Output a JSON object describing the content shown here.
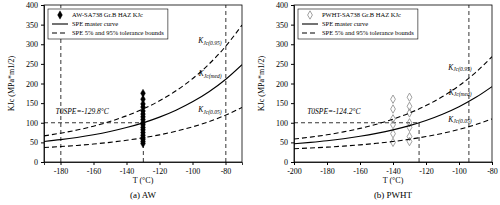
{
  "chart_data": [
    {
      "type": "scatter",
      "title": "(a) AW",
      "x_label": "T (°C)",
      "y_label": "KJc (MPa*m1/2)",
      "xlim": [
        -190,
        -70
      ],
      "xticks": [
        -180,
        -160,
        -140,
        -120,
        -100,
        -80
      ],
      "ylim": [
        0,
        400
      ],
      "yticks": [
        0,
        50,
        100,
        150,
        200,
        250,
        300,
        350,
        400
      ],
      "legend": "upper left",
      "series": [
        {
          "name": "AW-SA738 Gr.B HAZ KJc",
          "type": "scatter",
          "marker": "diamond",
          "color": "#000000",
          "x": [
            -130,
            -130,
            -130,
            -130,
            -130,
            -130,
            -130,
            -130,
            -130,
            -130,
            -130,
            -130,
            -130,
            -130,
            -130,
            -130,
            -130,
            -130
          ],
          "values": [
            175,
            160,
            148,
            140,
            130,
            122,
            115,
            108,
            100,
            95,
            88,
            82,
            75,
            68,
            62,
            58,
            52,
            47
          ]
        },
        {
          "name": "SPE master curve",
          "type": "line",
          "line_style": "solid",
          "color": "#000000",
          "label": "KJc(med)",
          "x": [
            -190,
            -180,
            -170,
            -160,
            -150,
            -140,
            -130,
            -120,
            -110,
            -100,
            -90,
            -80,
            -70
          ],
          "values": [
            52.3,
            57.0,
            62.6,
            69.4,
            77.7,
            87.7,
            99.7,
            114.3,
            132.0,
            153.3,
            179.1,
            210.3,
            248.0
          ]
        },
        {
          "name": "SPE 5% and 95% tolerance bounds",
          "type": "line",
          "line_style": "dashed",
          "color": "#000000",
          "label": "KJc(0.95)",
          "x": [
            -190,
            -180,
            -170,
            -160,
            -150,
            -140,
            -130,
            -120,
            -110,
            -100,
            -90,
            -80,
            -70
          ],
          "values": [
            66.6,
            73.4,
            81.4,
            91.2,
            103.2,
            117.6,
            134.9,
            156.0,
            181.5,
            212.2,
            249.4,
            294.4,
            348.8
          ]
        },
        {
          "type": "line",
          "line_style": "dashed",
          "color": "#000000",
          "label": "KJc(0.05)",
          "x": [
            -190,
            -180,
            -170,
            -160,
            -150,
            -140,
            -130,
            -120,
            -110,
            -100,
            -90,
            -80,
            -70
          ],
          "values": [
            36.8,
            39.3,
            42.2,
            45.8,
            50.1,
            55.3,
            61.6,
            69.2,
            78.4,
            89.5,
            103.0,
            119.3,
            138.9
          ]
        }
      ],
      "ref_lines": [
        {
          "x": [
            -179.8,
            -179.8
          ],
          "y": [
            0,
            400
          ]
        },
        {
          "x": [
            -79.8,
            -79.8
          ],
          "y": [
            0,
            400
          ]
        },
        {
          "x": [
            -129.8,
            -129.8
          ],
          "y": [
            0,
            100
          ]
        },
        {
          "x": [
            -190,
            -129.8
          ],
          "y": [
            100,
            100
          ]
        }
      ],
      "annotations": [
        {
          "text": "T0SPE=-129.8°C",
          "x": -183,
          "y": 122
        }
      ]
    },
    {
      "type": "scatter",
      "title": "(b) PWHT",
      "x_label": "T (°C)",
      "y_label": "KJc (MPa*m1/2)",
      "xlim": [
        -200,
        -80
      ],
      "xticks": [
        -200,
        -180,
        -160,
        -140,
        -120,
        -100,
        -80
      ],
      "ylim": [
        0,
        400
      ],
      "yticks": [
        0,
        50,
        100,
        150,
        200,
        250,
        300,
        350,
        400
      ],
      "legend": "upper left",
      "series": [
        {
          "name": "PWHT-SA738 Gr.B HAZ KJc",
          "type": "scatter",
          "marker": "diamond-open",
          "color": "#888888",
          "x": [
            -140,
            -140,
            -140,
            -140,
            -140,
            -140,
            -130,
            -130,
            -130,
            -130,
            -130,
            -130,
            -130
          ],
          "values": [
            160,
            135,
            110,
            95,
            72,
            50,
            165,
            142,
            125,
            100,
            88,
            65,
            52
          ]
        },
        {
          "name": "SPE master curve",
          "type": "line",
          "line_style": "solid",
          "color": "#000000",
          "label": "KJc(med)",
          "x": [
            -200,
            -190,
            -180,
            -170,
            -160,
            -150,
            -140,
            -130,
            -120,
            -110,
            -100,
            -90,
            -80
          ],
          "values": [
            46.6,
            50.1,
            54.2,
            59.3,
            65.5,
            72.9,
            81.8,
            92.7,
            105.8,
            121.7,
            140.9,
            164.1,
            192.1
          ]
        },
        {
          "name": "SPE 5% and 95% tolerance bounds",
          "type": "line",
          "line_style": "dashed",
          "color": "#000000",
          "label": "KJc(0.95)",
          "x": [
            -200,
            -190,
            -180,
            -170,
            -160,
            -150,
            -140,
            -130,
            -120,
            -110,
            -100,
            -90,
            -80
          ],
          "values": [
            58.4,
            63.4,
            69.3,
            76.7,
            85.6,
            96.3,
            109.1,
            124.8,
            143.7,
            166.7,
            194.3,
            227.8,
            268.2
          ]
        },
        {
          "type": "line",
          "line_style": "dashed",
          "color": "#000000",
          "label": "KJc(0.05)",
          "x": [
            -200,
            -190,
            -180,
            -170,
            -160,
            -150,
            -140,
            -130,
            -120,
            -110,
            -100,
            -90,
            -80
          ],
          "values": [
            33.9,
            35.7,
            37.8,
            40.5,
            43.7,
            47.6,
            52.2,
            57.9,
            64.8,
            73.0,
            83.1,
            95.2,
            109.8
          ]
        }
      ],
      "ref_lines": [
        {
          "x": [
            -94,
            -94
          ],
          "y": [
            0,
            400
          ]
        },
        {
          "x": [
            -124.2,
            -124.2
          ],
          "y": [
            0,
            100
          ]
        },
        {
          "x": [
            -200,
            -124.2
          ],
          "y": [
            100,
            100
          ]
        }
      ],
      "annotations": [
        {
          "text": "T0SPE=-124.2°C",
          "x": -192,
          "y": 122
        }
      ]
    }
  ]
}
